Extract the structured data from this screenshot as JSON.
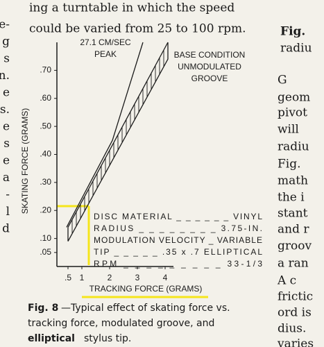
{
  "page_text": {
    "top_lines": [
      "ing a turntable in which the speed",
      "could be varied from 25 to 100 rpm."
    ],
    "left_column": [
      "e-",
      "g",
      "s",
      "n.",
      "e",
      "s.",
      "e",
      "s",
      "e",
      "a",
      "-",
      "l",
      "d"
    ],
    "right_column": [
      "Fig.",
      "radiu",
      "G",
      "geom",
      "pivot",
      "will",
      "radiu",
      "Fig.",
      "math",
      "the i",
      "stant",
      "and r",
      "groov",
      "a ran",
      "A c",
      "frictic",
      "ord is",
      "dius.",
      "varies"
    ],
    "caption": {
      "label": "Fig. 8",
      "text1": "—Typical effect of skating force vs.",
      "text2": "tracking force, modulated groove, and",
      "bold": "elliptical",
      "text3": "stylus tip."
    }
  },
  "chart_data": {
    "type": "line",
    "x_label": "TRACKING FORCE (GRAMS)",
    "y_label": "SKATING FORCE (GRAMS)",
    "xlim": [
      0.1,
      4.3
    ],
    "ylim": [
      0,
      0.8
    ],
    "xticks": [
      {
        "value": 0.5,
        "label": ".5"
      },
      1,
      2,
      3,
      4
    ],
    "yticks": [
      {
        "value": 0.05,
        "label": ".05"
      },
      {
        "value": 0.1,
        "label": ".10"
      },
      {
        "value": 0.2,
        "label": ".20"
      },
      {
        "value": 0.3,
        "label": ".30"
      },
      {
        "value": 0.4,
        "label": ".40"
      },
      {
        "value": 0.5,
        "label": ".50"
      },
      {
        "value": 0.6,
        "label": ".60"
      },
      {
        "value": 0.7,
        "label": ".70"
      }
    ],
    "series": [
      {
        "name": "27.1 CM/SEC PEAK",
        "name_lines": [
          "27.1 CM/SEC",
          "PEAK"
        ],
        "color": "#1a1a1a",
        "x": [
          0.45,
          2.1,
          3.2
        ],
        "values": [
          0.14,
          0.45,
          0.8
        ]
      },
      {
        "name": "BASE CONDITION UNMODULATED GROOVE",
        "name_lines": [
          "BASE CONDITION",
          "UNMODULATED",
          "GROOVE"
        ],
        "color": "#1a1a1a",
        "x": [
          0.5,
          4.1
        ],
        "values": [
          0.14,
          0.8
        ],
        "values_lower": [
          0.09,
          0.74
        ]
      }
    ],
    "conditions": [
      "DISC MATERIAL _ _ _ _ _ _ VINYL",
      "RADIUS _ _ _ _ _ _ _ _ 3.75-IN.",
      "MODULATION VELOCITY _ VARIABLE",
      "TIP _ _ _ _ _ .35 x .7 ELLIPTICAL",
      "RPM _ _ _ _ _ _ _ _ _ 33-1/3"
    ]
  }
}
